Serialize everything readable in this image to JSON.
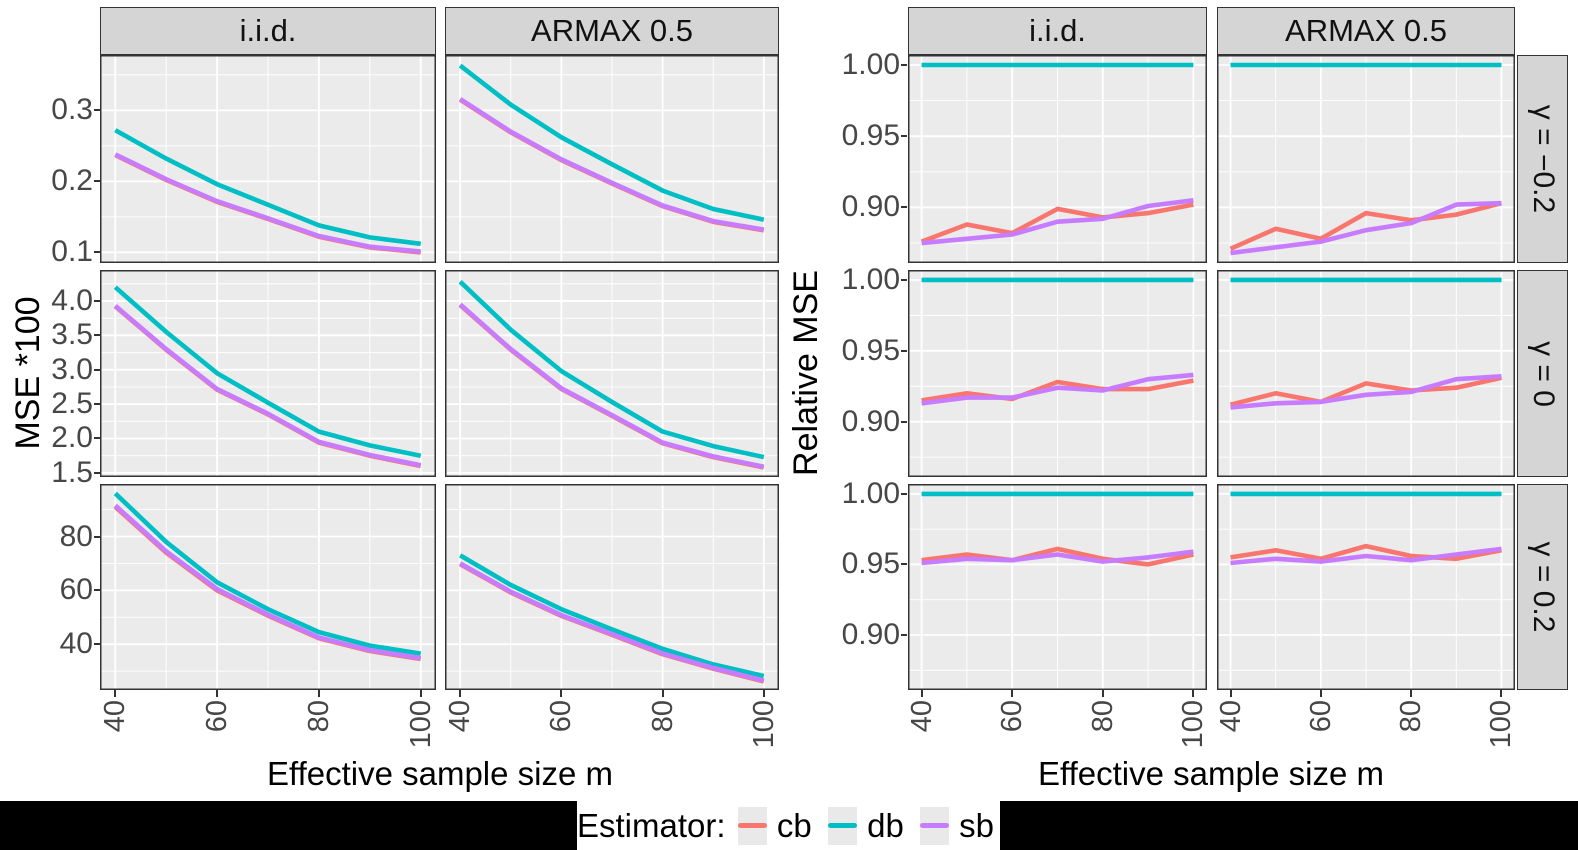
{
  "figure": {
    "colors": {
      "panel_bg": "#EBEBEB",
      "strip_bg": "#D5D5D5",
      "grid": "#FFFFFF",
      "border": "#333333",
      "axis_text": "#474747",
      "cb": "#F8766D",
      "db": "#00BFC4",
      "sb": "#C77CFF"
    },
    "legend": {
      "title": "Estimator:",
      "entries": [
        {
          "id": "cb",
          "label": "cb",
          "color": "#F8766D"
        },
        {
          "id": "db",
          "label": "db",
          "color": "#00BFC4"
        },
        {
          "id": "sb",
          "label": "sb",
          "color": "#C77CFF"
        }
      ]
    }
  },
  "chart_data": [
    {
      "id": "absolute-mse",
      "type": "line",
      "xlabel": "Effective sample size m",
      "ylabel": "MSE *100",
      "x": [
        40,
        50,
        60,
        70,
        80,
        90,
        100
      ],
      "xlim": [
        37,
        103
      ],
      "xticks": [
        40,
        60,
        80,
        100
      ],
      "xtick_labels": [
        "40",
        "60",
        "80",
        "100"
      ],
      "xminor": [
        50,
        70,
        90
      ],
      "col_facets": [
        "i.i.d.",
        "ARMAX 0.5"
      ],
      "row_facets": [
        "γ = −0.2",
        "γ = 0",
        "γ = 0.2"
      ],
      "show_row_strips": false,
      "grid": true,
      "legend_position": "bottom-shared",
      "rows": [
        {
          "facet": "γ = −0.2",
          "ylim": [
            0.085,
            0.378
          ],
          "yticks": [
            0.3,
            0.2,
            0.1
          ],
          "ytick_labels": [
            "0.3",
            "0.2",
            "0.1"
          ],
          "yminor": [
            0.35,
            0.25,
            0.15
          ],
          "panels": [
            {
              "col_facet": "i.i.d.",
              "series": [
                {
                  "name": "cb",
                  "values": [
                    0.237,
                    0.202,
                    0.171,
                    0.147,
                    0.122,
                    0.107,
                    0.1
                  ]
                },
                {
                  "name": "db",
                  "values": [
                    0.272,
                    0.232,
                    0.196,
                    0.167,
                    0.138,
                    0.121,
                    0.112
                  ]
                },
                {
                  "name": "sb",
                  "values": [
                    0.238,
                    0.203,
                    0.172,
                    0.148,
                    0.123,
                    0.108,
                    0.101
                  ]
                }
              ]
            },
            {
              "col_facet": "ARMAX 0.5",
              "series": [
                {
                  "name": "cb",
                  "values": [
                    0.315,
                    0.269,
                    0.23,
                    0.197,
                    0.165,
                    0.143,
                    0.131
                  ]
                },
                {
                  "name": "db",
                  "values": [
                    0.363,
                    0.308,
                    0.262,
                    0.224,
                    0.187,
                    0.161,
                    0.146
                  ]
                },
                {
                  "name": "sb",
                  "values": [
                    0.316,
                    0.27,
                    0.231,
                    0.198,
                    0.166,
                    0.144,
                    0.132
                  ]
                }
              ]
            }
          ]
        },
        {
          "facet": "γ = 0",
          "ylim": [
            1.44,
            4.45
          ],
          "yticks": [
            4.0,
            3.5,
            3.0,
            2.5,
            2.0,
            1.5
          ],
          "ytick_labels": [
            "4.0",
            "3.5",
            "3.0",
            "2.5",
            "2.0",
            "1.5"
          ],
          "yminor": [
            4.25,
            3.75,
            3.25,
            2.75,
            2.25,
            1.75
          ],
          "panels": [
            {
              "col_facet": "i.i.d.",
              "series": [
                {
                  "name": "cb",
                  "values": [
                    3.92,
                    3.29,
                    2.71,
                    2.35,
                    1.94,
                    1.75,
                    1.6
                  ]
                },
                {
                  "name": "db",
                  "values": [
                    4.2,
                    3.55,
                    2.95,
                    2.52,
                    2.1,
                    1.9,
                    1.75
                  ]
                },
                {
                  "name": "sb",
                  "values": [
                    3.93,
                    3.3,
                    2.72,
                    2.36,
                    1.95,
                    1.76,
                    1.61
                  ]
                }
              ]
            },
            {
              "col_facet": "ARMAX 0.5",
              "series": [
                {
                  "name": "cb",
                  "values": [
                    3.94,
                    3.29,
                    2.72,
                    2.33,
                    1.93,
                    1.73,
                    1.58
                  ]
                },
                {
                  "name": "db",
                  "values": [
                    4.28,
                    3.58,
                    2.98,
                    2.53,
                    2.1,
                    1.89,
                    1.73
                  ]
                },
                {
                  "name": "sb",
                  "values": [
                    3.95,
                    3.3,
                    2.73,
                    2.34,
                    1.94,
                    1.74,
                    1.59
                  ]
                }
              ]
            }
          ]
        },
        {
          "facet": "γ = 0.2",
          "ylim": [
            23,
            99.5
          ],
          "yticks": [
            80,
            60,
            40
          ],
          "ytick_labels": [
            "80",
            "60",
            "40"
          ],
          "yminor": [
            90,
            70,
            50,
            30
          ],
          "panels": [
            {
              "col_facet": "i.i.d.",
              "series": [
                {
                  "name": "cb",
                  "values": [
                    91.0,
                    74.0,
                    60.0,
                    50.6,
                    42.2,
                    37.5,
                    34.5
                  ]
                },
                {
                  "name": "db",
                  "values": [
                    96.0,
                    78.0,
                    63.0,
                    53.0,
                    44.5,
                    39.5,
                    36.5
                  ]
                },
                {
                  "name": "sb",
                  "values": [
                    91.5,
                    74.5,
                    60.5,
                    51.0,
                    42.5,
                    37.8,
                    34.8
                  ]
                }
              ]
            },
            {
              "col_facet": "ARMAX 0.5",
              "series": [
                {
                  "name": "cb",
                  "values": [
                    69.7,
                    59.2,
                    50.5,
                    43.5,
                    36.3,
                    30.9,
                    26.2
                  ]
                },
                {
                  "name": "db",
                  "values": [
                    73.0,
                    62.0,
                    53.0,
                    45.5,
                    38.3,
                    32.5,
                    28.2
                  ]
                },
                {
                  "name": "sb",
                  "values": [
                    70.0,
                    59.5,
                    50.8,
                    43.8,
                    36.6,
                    31.2,
                    26.5
                  ]
                }
              ]
            }
          ]
        }
      ]
    },
    {
      "id": "relative-mse",
      "type": "line",
      "xlabel": "Effective sample size m",
      "ylabel": "Relative MSE",
      "x": [
        40,
        50,
        60,
        70,
        80,
        90,
        100
      ],
      "xlim": [
        37,
        103
      ],
      "xticks": [
        40,
        60,
        80,
        100
      ],
      "xtick_labels": [
        "40",
        "60",
        "80",
        "100"
      ],
      "xminor": [
        50,
        70,
        90
      ],
      "col_facets": [
        "i.i.d.",
        "ARMAX 0.5"
      ],
      "row_facets": [
        "γ = −0.2",
        "γ = 0",
        "γ = 0.2"
      ],
      "show_row_strips": true,
      "grid": true,
      "legend_position": "bottom-shared",
      "rows": [
        {
          "facet": "γ = −0.2",
          "ylim": [
            0.861,
            1.007
          ],
          "yticks": [
            1.0,
            0.95,
            0.9
          ],
          "ytick_labels": [
            "1.00",
            "0.95",
            "0.90"
          ],
          "yminor": [
            0.975,
            0.925,
            0.875
          ],
          "panels": [
            {
              "col_facet": "i.i.d.",
              "series": [
                {
                  "name": "cb",
                  "values": [
                    0.876,
                    0.888,
                    0.882,
                    0.899,
                    0.893,
                    0.896,
                    0.902
                  ]
                },
                {
                  "name": "db",
                  "values": [
                    1.0,
                    1.0,
                    1.0,
                    1.0,
                    1.0,
                    1.0,
                    1.0
                  ]
                },
                {
                  "name": "sb",
                  "values": [
                    0.875,
                    0.878,
                    0.881,
                    0.89,
                    0.892,
                    0.901,
                    0.905
                  ]
                }
              ]
            },
            {
              "col_facet": "ARMAX 0.5",
              "series": [
                {
                  "name": "cb",
                  "values": [
                    0.871,
                    0.885,
                    0.878,
                    0.896,
                    0.891,
                    0.895,
                    0.903
                  ]
                },
                {
                  "name": "db",
                  "values": [
                    1.0,
                    1.0,
                    1.0,
                    1.0,
                    1.0,
                    1.0,
                    1.0
                  ]
                },
                {
                  "name": "sb",
                  "values": [
                    0.868,
                    0.872,
                    0.876,
                    0.884,
                    0.889,
                    0.902,
                    0.903
                  ]
                }
              ]
            }
          ]
        },
        {
          "facet": "γ = 0",
          "ylim": [
            0.861,
            1.007
          ],
          "yticks": [
            1.0,
            0.95,
            0.9
          ],
          "ytick_labels": [
            "1.00",
            "0.95",
            "0.90"
          ],
          "yminor": [
            0.975,
            0.925,
            0.875
          ],
          "panels": [
            {
              "col_facet": "i.i.d.",
              "series": [
                {
                  "name": "cb",
                  "values": [
                    0.915,
                    0.92,
                    0.916,
                    0.928,
                    0.923,
                    0.923,
                    0.929
                  ]
                },
                {
                  "name": "db",
                  "values": [
                    1.0,
                    1.0,
                    1.0,
                    1.0,
                    1.0,
                    1.0,
                    1.0
                  ]
                },
                {
                  "name": "sb",
                  "values": [
                    0.913,
                    0.917,
                    0.917,
                    0.924,
                    0.922,
                    0.93,
                    0.933
                  ]
                }
              ]
            },
            {
              "col_facet": "ARMAX 0.5",
              "series": [
                {
                  "name": "cb",
                  "values": [
                    0.912,
                    0.92,
                    0.914,
                    0.927,
                    0.922,
                    0.924,
                    0.931
                  ]
                },
                {
                  "name": "db",
                  "values": [
                    1.0,
                    1.0,
                    1.0,
                    1.0,
                    1.0,
                    1.0,
                    1.0
                  ]
                },
                {
                  "name": "sb",
                  "values": [
                    0.91,
                    0.913,
                    0.914,
                    0.919,
                    0.921,
                    0.93,
                    0.932
                  ]
                }
              ]
            }
          ]
        },
        {
          "facet": "γ = 0.2",
          "ylim": [
            0.861,
            1.007
          ],
          "yticks": [
            1.0,
            0.95,
            0.9
          ],
          "ytick_labels": [
            "1.00",
            "0.95",
            "0.90"
          ],
          "yminor": [
            0.975,
            0.925,
            0.875
          ],
          "panels": [
            {
              "col_facet": "i.i.d.",
              "series": [
                {
                  "name": "cb",
                  "values": [
                    0.953,
                    0.957,
                    0.953,
                    0.961,
                    0.954,
                    0.95,
                    0.957
                  ]
                },
                {
                  "name": "db",
                  "values": [
                    1.0,
                    1.0,
                    1.0,
                    1.0,
                    1.0,
                    1.0,
                    1.0
                  ]
                },
                {
                  "name": "sb",
                  "values": [
                    0.951,
                    0.954,
                    0.953,
                    0.957,
                    0.952,
                    0.955,
                    0.959
                  ]
                }
              ]
            },
            {
              "col_facet": "ARMAX 0.5",
              "series": [
                {
                  "name": "cb",
                  "values": [
                    0.955,
                    0.96,
                    0.954,
                    0.963,
                    0.956,
                    0.954,
                    0.96
                  ]
                },
                {
                  "name": "db",
                  "values": [
                    1.0,
                    1.0,
                    1.0,
                    1.0,
                    1.0,
                    1.0,
                    1.0
                  ]
                },
                {
                  "name": "sb",
                  "values": [
                    0.951,
                    0.954,
                    0.952,
                    0.956,
                    0.953,
                    0.957,
                    0.961
                  ]
                }
              ]
            }
          ]
        }
      ]
    }
  ]
}
